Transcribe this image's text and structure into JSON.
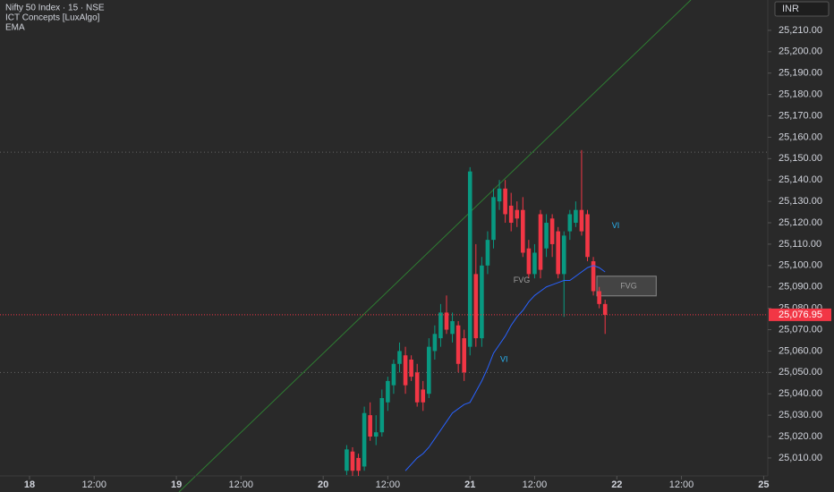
{
  "chart_data": {
    "type": "candlestick",
    "title": "Nifty 50 Index · 15 · NSE",
    "indicators": [
      "ICT Concepts [LuxAlgo]",
      "EMA"
    ],
    "currency": "INR",
    "up_color": "#089981",
    "down_color": "#f23645",
    "ema_color": "#2962ff",
    "x": [
      54,
      55,
      56,
      57,
      58,
      59,
      60,
      61,
      62,
      63,
      64,
      65,
      66,
      67,
      68,
      69,
      70,
      71,
      72,
      73,
      74,
      75,
      76,
      77,
      78,
      79,
      80,
      81,
      82,
      83,
      84,
      85,
      86,
      87,
      88,
      89,
      90,
      91,
      92,
      93,
      94,
      95,
      96,
      97,
      98
    ],
    "open": [
      25004,
      25013,
      25010,
      25006,
      25030,
      25020,
      25022,
      25036,
      25044,
      25054,
      25058,
      25056,
      25050,
      25042,
      25040,
      25060,
      25066,
      25078,
      25068,
      25072,
      25066,
      25062,
      25096,
      25066,
      25100,
      25112,
      25130,
      25136,
      25128,
      25126,
      25126,
      25108,
      25096,
      25124,
      25108,
      25122,
      25116,
      25096,
      25116,
      25120,
      25126,
      25124,
      25102,
      25088,
      25082
    ],
    "high": [
      25016,
      25015,
      25012,
      25034,
      25036,
      25030,
      25042,
      25048,
      25056,
      25064,
      25062,
      25058,
      25054,
      25046,
      25066,
      25072,
      25082,
      25086,
      25078,
      25074,
      25070,
      25146,
      25110,
      25104,
      25116,
      25136,
      25140,
      25140,
      25134,
      25130,
      25132,
      25112,
      25110,
      25126,
      25124,
      25124,
      25118,
      25116,
      25126,
      25130,
      25154,
      25126,
      25104,
      25090,
      25084
    ],
    "low": [
      25002,
      25000,
      25001,
      25004,
      25018,
      25016,
      25020,
      25032,
      25040,
      25050,
      25040,
      25046,
      25034,
      25032,
      25038,
      25056,
      25062,
      25068,
      25064,
      25050,
      25046,
      25058,
      25062,
      25062,
      25096,
      25108,
      25126,
      25120,
      25116,
      25118,
      25104,
      25094,
      25094,
      25094,
      25104,
      25104,
      25094,
      25076,
      25112,
      25118,
      25114,
      25102,
      25086,
      25080,
      25068
    ],
    "close": [
      25014,
      25004,
      25004,
      25031,
      25020,
      25022,
      25038,
      25046,
      25054,
      25060,
      25044,
      25048,
      25036,
      25036,
      25062,
      25068,
      25078,
      25070,
      25074,
      25054,
      25050,
      25144,
      25066,
      25100,
      25112,
      25132,
      25136,
      25124,
      25120,
      25122,
      25106,
      25096,
      25106,
      25098,
      25120,
      25110,
      25096,
      25114,
      25124,
      25126,
      25116,
      25104,
      25088,
      25082,
      25076.95
    ],
    "series": [
      {
        "name": "EMA",
        "values": [
          null,
          null,
          null,
          null,
          null,
          null,
          null,
          null,
          null,
          null,
          25004,
          25007,
          25010,
          25012,
          25015,
          25019,
          25023,
          25027,
          25031,
          25033,
          25035,
          25036,
          25041,
          25046,
          25052,
          25059,
          25063,
          25067,
          25072,
          25076,
          25079,
          25083,
          25086,
          25088,
          25090,
          25091,
          25092,
          25093,
          25093,
          25095,
          25097,
          25099,
          25100,
          25099,
          25097
        ]
      }
    ],
    "last_price": {
      "value": 25076.95,
      "label": "25,076.95"
    },
    "levels": [
      25153,
      25050
    ],
    "fvg_box": {
      "x": [
        96.6,
        106.7
      ],
      "y": [
        25085.8,
        25095
      ]
    },
    "annotations": [
      {
        "text": "VI",
        "x": 99.8,
        "y": 25118.4
      },
      {
        "text": "VI",
        "x": 80.8,
        "y": 25056
      },
      {
        "text": "FVG",
        "x": 102,
        "y": 25090.3
      },
      {
        "text": "FVG",
        "x": 83.8,
        "y": 25093
      }
    ],
    "xlim": [
      -5.03,
      125.7
    ],
    "ylim": [
      25001.6,
      25224.2
    ],
    "xticks": [
      {
        "value": 0,
        "label": "18"
      },
      {
        "value": 11,
        "label": "12:00"
      },
      {
        "value": 25,
        "label": "19"
      },
      {
        "value": 36,
        "label": "12:00"
      },
      {
        "value": 50,
        "label": "20"
      },
      {
        "value": 61,
        "label": "12:00"
      },
      {
        "value": 75,
        "label": "21"
      },
      {
        "value": 86,
        "label": "12:00"
      },
      {
        "value": 100,
        "label": "22"
      },
      {
        "value": 111,
        "label": "12:00"
      },
      {
        "value": 125,
        "label": "25"
      }
    ],
    "yticks": [
      {
        "value": 25010,
        "label": "25,010.00"
      },
      {
        "value": 25020,
        "label": "25,020.00"
      },
      {
        "value": 25030,
        "label": "25,030.00"
      },
      {
        "value": 25040,
        "label": "25,040.00"
      },
      {
        "value": 25050,
        "label": "25,050.00"
      },
      {
        "value": 25060,
        "label": "25,060.00"
      },
      {
        "value": 25070,
        "label": "25,070.00"
      },
      {
        "value": 25080,
        "label": "25,080.00"
      },
      {
        "value": 25090,
        "label": "25,090.00"
      },
      {
        "value": 25100,
        "label": "25,100.00"
      },
      {
        "value": 25110,
        "label": "25,110.00"
      },
      {
        "value": 25120,
        "label": "25,120.00"
      },
      {
        "value": 25130,
        "label": "25,130.00"
      },
      {
        "value": 25140,
        "label": "25,140.00"
      },
      {
        "value": 25150,
        "label": "25,150.00"
      },
      {
        "value": 25160,
        "label": "25,160.00"
      },
      {
        "value": 25170,
        "label": "25,170.00"
      },
      {
        "value": 25180,
        "label": "25,180.00"
      },
      {
        "value": 25190,
        "label": "25,190.00"
      },
      {
        "value": 25200,
        "label": "25,200.00"
      },
      {
        "value": 25210,
        "label": "25,210.00"
      }
    ],
    "grid": false
  }
}
